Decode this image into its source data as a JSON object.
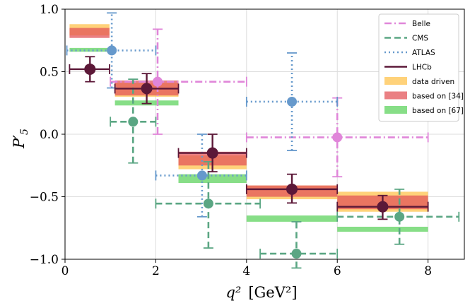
{
  "chart_data": {
    "type": "errorbar",
    "xlabel": "q²",
    "xunit": "[GeV²]",
    "ylabel": "P′",
    "ylabel_sub": "5",
    "xlim": [
      0,
      8.8
    ],
    "ylim": [
      -1.0,
      1.0
    ],
    "xticks": [
      0,
      2,
      4,
      6,
      8
    ],
    "yticks": [
      -1.0,
      -0.5,
      0.0,
      0.5,
      1.0
    ],
    "ytick_labels": [
      "−1.0",
      "−0.5",
      "0.0",
      "0.5",
      "1.0"
    ],
    "grid": true,
    "legend_position": "top-right",
    "bands": [
      {
        "name": "data driven",
        "color": "#ffc34d",
        "bins": [
          {
            "x": [
              0.1,
              0.98
            ],
            "y": [
              0.79,
              0.88
            ]
          },
          {
            "x": [
              1.1,
              2.5
            ],
            "y": [
              0.3,
              0.41
            ]
          },
          {
            "x": [
              2.5,
              4.0
            ],
            "y": [
              -0.28,
              -0.17
            ]
          },
          {
            "x": [
              4.0,
              6.0
            ],
            "y": [
              -0.52,
              -0.41
            ]
          },
          {
            "x": [
              6.0,
              8.0
            ],
            "y": [
              -0.62,
              -0.46
            ]
          }
        ]
      },
      {
        "name": "based on [34]",
        "color": "#e3565a",
        "bins": [
          {
            "x": [
              0.1,
              0.98
            ],
            "y": [
              0.77,
              0.85
            ]
          },
          {
            "x": [
              1.1,
              2.5
            ],
            "y": [
              0.31,
              0.43
            ]
          },
          {
            "x": [
              2.5,
              4.0
            ],
            "y": [
              -0.25,
              -0.14
            ]
          },
          {
            "x": [
              4.0,
              6.0
            ],
            "y": [
              -0.5,
              -0.41
            ]
          },
          {
            "x": [
              6.0,
              8.0
            ],
            "y": [
              -0.6,
              -0.49
            ]
          }
        ]
      },
      {
        "name": "based on [67]",
        "color": "#5fd35f",
        "bins": [
          {
            "x": [
              0.1,
              0.98
            ],
            "y": [
              0.66,
              0.69
            ]
          },
          {
            "x": [
              1.1,
              2.5
            ],
            "y": [
              0.23,
              0.27
            ]
          },
          {
            "x": [
              2.5,
              4.0
            ],
            "y": [
              -0.39,
              -0.32
            ]
          },
          {
            "x": [
              4.0,
              6.0
            ],
            "y": [
              -0.7,
              -0.65
            ]
          },
          {
            "x": [
              6.0,
              8.0
            ],
            "y": [
              -0.78,
              -0.74
            ]
          }
        ]
      }
    ],
    "series": [
      {
        "name": "Belle",
        "color": "#e086d9",
        "style": "dashdot",
        "marker_size": 7,
        "points": [
          {
            "x": 2.04,
            "xlo": 1.0,
            "xhi": 4.0,
            "y": 0.42,
            "ylo": 0.0,
            "yhi": 0.84
          },
          {
            "x": 6.0,
            "xlo": 4.0,
            "xhi": 8.0,
            "y": -0.025,
            "ylo": -0.34,
            "yhi": 0.29
          }
        ]
      },
      {
        "name": "CMS",
        "color": "#5aa683",
        "style": "dashed",
        "marker_size": 7,
        "points": [
          {
            "x": 1.5,
            "xlo": 1.0,
            "xhi": 2.0,
            "y": 0.1,
            "ylo": -0.23,
            "yhi": 0.44
          },
          {
            "x": 3.16,
            "xlo": 2.0,
            "xhi": 4.3,
            "y": -0.555,
            "ylo": -0.91,
            "yhi": -0.22
          },
          {
            "x": 5.1,
            "xlo": 4.3,
            "xhi": 6.0,
            "y": -0.955,
            "ylo": -1.07,
            "yhi": -0.7
          },
          {
            "x": 7.37,
            "xlo": 6.0,
            "xhi": 8.68,
            "y": -0.66,
            "ylo": -0.88,
            "yhi": -0.44
          }
        ]
      },
      {
        "name": "ATLAS",
        "color": "#6699cc",
        "style": "dotted",
        "marker_size": 7,
        "points": [
          {
            "x": 1.03,
            "xlo": 0.04,
            "xhi": 2.0,
            "y": 0.67,
            "ylo": 0.37,
            "yhi": 0.97
          },
          {
            "x": 3.02,
            "xlo": 2.0,
            "xhi": 4.0,
            "y": -0.33,
            "ylo": -0.66,
            "yhi": 0.0
          },
          {
            "x": 5.0,
            "xlo": 4.0,
            "xhi": 6.0,
            "y": 0.26,
            "ylo": -0.13,
            "yhi": 0.65
          }
        ]
      },
      {
        "name": "LHCb",
        "color": "#5c1838",
        "style": "solid",
        "marker_size": 8,
        "points": [
          {
            "x": 0.55,
            "xlo": 0.1,
            "xhi": 0.98,
            "y": 0.52,
            "ylo": 0.42,
            "yhi": 0.62
          },
          {
            "x": 1.8,
            "xlo": 1.1,
            "xhi": 2.5,
            "y": 0.365,
            "ylo": 0.245,
            "yhi": 0.485
          },
          {
            "x": 3.25,
            "xlo": 2.5,
            "xhi": 4.0,
            "y": -0.15,
            "ylo": -0.3,
            "yhi": 0.0
          },
          {
            "x": 5.0,
            "xlo": 4.0,
            "xhi": 6.0,
            "y": -0.44,
            "ylo": -0.55,
            "yhi": -0.32
          },
          {
            "x": 7.0,
            "xlo": 6.0,
            "xhi": 8.0,
            "y": -0.58,
            "ylo": -0.68,
            "yhi": -0.49
          }
        ]
      }
    ],
    "legend": [
      {
        "label": "Belle",
        "kind": "line",
        "ref": "Belle"
      },
      {
        "label": "CMS",
        "kind": "line",
        "ref": "CMS"
      },
      {
        "label": "ATLAS",
        "kind": "line",
        "ref": "ATLAS"
      },
      {
        "label": "LHCb",
        "kind": "line",
        "ref": "LHCb"
      },
      {
        "label": "data driven",
        "kind": "patch",
        "ref": "data driven"
      },
      {
        "label": "based on [34]",
        "kind": "patch",
        "ref": "based on [34]"
      },
      {
        "label": "based on [67]",
        "kind": "patch",
        "ref": "based on [67]"
      }
    ]
  }
}
